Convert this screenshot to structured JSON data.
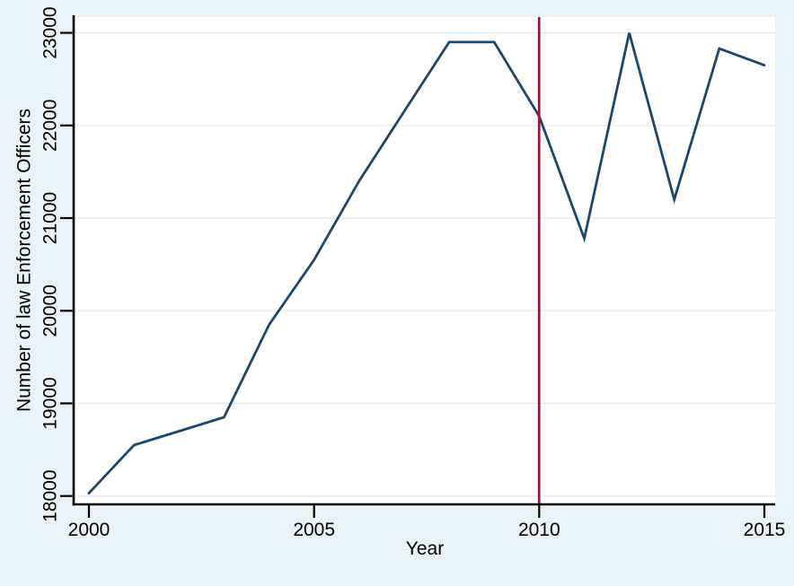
{
  "figure": {
    "background_color": "#eaf2f3",
    "plot_background_color": "#ffffff",
    "grid_color": "#e4edf0",
    "axis_color": "#000000",
    "text_color": "#000000"
  },
  "chart_data": {
    "type": "line",
    "title": "",
    "xlabel": "Year",
    "ylabel": "Number of law Enforcement Officers",
    "x": [
      2000,
      2001,
      2002,
      2003,
      2004,
      2005,
      2006,
      2007,
      2008,
      2009,
      2010,
      2011,
      2012,
      2013,
      2014,
      2015
    ],
    "series": [
      {
        "name": "Number of law Enforcement Officers",
        "color": "#1a476f",
        "values": [
          18030,
          18550,
          18700,
          18850,
          19850,
          20550,
          21400,
          22150,
          22900,
          22900,
          22100,
          20780,
          23000,
          21200,
          22830,
          22650
        ]
      }
    ],
    "reference_line": {
      "axis": "x",
      "value": 2010,
      "color": "#c10534"
    },
    "xticks": [
      2000,
      2005,
      2010,
      2015
    ],
    "yticks": [
      18000,
      19000,
      20000,
      21000,
      22000,
      23000
    ],
    "xlim": [
      1999.68,
      2015.24
    ],
    "ylim": [
      17920,
      23170
    ],
    "grid": "horizontal",
    "legend": "none"
  }
}
